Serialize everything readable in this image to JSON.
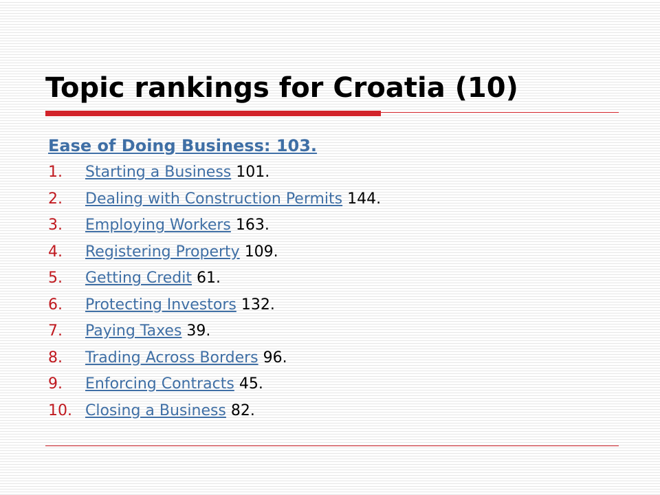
{
  "slide": {
    "title": "Topic rankings for Croatia (10)",
    "heading": "Ease of Doing Business: 103.",
    "topics": [
      {
        "number": "1.",
        "name": "Starting a Business",
        "rank": "101."
      },
      {
        "number": "2.",
        "name": "Dealing with Construction Permits",
        "rank": "144."
      },
      {
        "number": "3.",
        "name": "Employing Workers",
        "rank": "163."
      },
      {
        "number": "4.",
        "name": "Registering Property",
        "rank": "109."
      },
      {
        "number": "5.",
        "name": "Getting Credit",
        "rank": "61."
      },
      {
        "number": "6.",
        "name": "Protecting Investors",
        "rank": "132."
      },
      {
        "number": "7.",
        "name": "Paying Taxes",
        "rank": "39."
      },
      {
        "number": "8.",
        "name": "Trading Across Borders",
        "rank": "96."
      },
      {
        "number": "9.",
        "name": "Enforcing Contracts",
        "rank": "45."
      },
      {
        "number": "10.",
        "name": "Closing a Business",
        "rank": "82."
      }
    ]
  },
  "colors": {
    "accent_red": "#d2232a",
    "link_blue": "#3f6fa5",
    "number_red": "#c0191f"
  }
}
